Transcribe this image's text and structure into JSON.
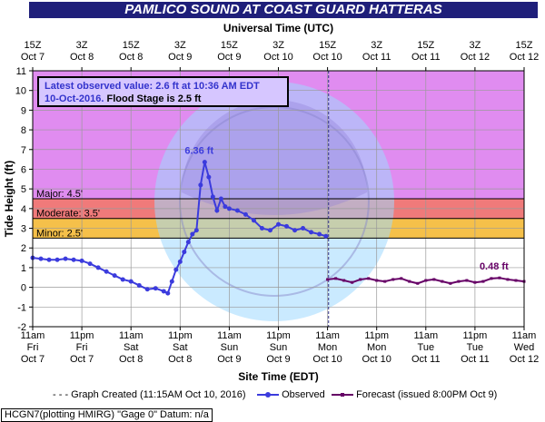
{
  "header": {
    "title": "PAMLICO SOUND AT COAST GUARD HATTERAS",
    "top_axis_title": "Universal Time (UTC)"
  },
  "info_box": {
    "line1": "Latest observed value: 2.6 ft at 10:36 AM EDT",
    "line2_date": "10-Oct-2016.",
    "line2_flood": " Flood Stage is 2.5 ft"
  },
  "legend": {
    "graph_created": "Graph Created (11:15AM Oct 10, 2016)",
    "observed": "Observed",
    "forecast": "Forecast (issued 8:00PM Oct 9)"
  },
  "footer": {
    "text": "HCGN7(plotting HMIRG) \"Gage 0\" Datum: n/a"
  },
  "colors": {
    "title_bg": "#1f1f7a",
    "major_band": "#e08cf0",
    "moderate_band": "#f07a7a",
    "minor_band": "#f5c04a",
    "normal_band": "#ffffff",
    "observed": "#3b3bdd",
    "forecast": "#660066",
    "info_text": "#3333cc"
  },
  "chart_data": {
    "type": "line",
    "ylabel": "Tide Height (ft)",
    "xlabel": "Site Time (EDT)",
    "ylim": [
      -2,
      11
    ],
    "yticks": [
      -2,
      -1,
      0,
      1,
      2,
      3,
      4,
      5,
      6,
      7,
      8,
      9,
      10,
      11
    ],
    "grid": true,
    "x_bottom_ticks": [
      {
        "time": "11am",
        "day": "Fri",
        "date": "Oct 7"
      },
      {
        "time": "11pm",
        "day": "Fri",
        "date": "Oct 7"
      },
      {
        "time": "11am",
        "day": "Sat",
        "date": "Oct 8"
      },
      {
        "time": "11pm",
        "day": "Sat",
        "date": "Oct 8"
      },
      {
        "time": "11am",
        "day": "Sun",
        "date": "Oct 9"
      },
      {
        "time": "11pm",
        "day": "Sun",
        "date": "Oct 9"
      },
      {
        "time": "11am",
        "day": "Mon",
        "date": "Oct 10"
      },
      {
        "time": "11pm",
        "day": "Mon",
        "date": "Oct 10"
      },
      {
        "time": "11am",
        "day": "Tue",
        "date": "Oct 11"
      },
      {
        "time": "11pm",
        "day": "Tue",
        "date": "Oct 11"
      },
      {
        "time": "11am",
        "day": "Wed",
        "date": "Oct 12"
      }
    ],
    "x_top_ticks": [
      {
        "time": "15Z",
        "date": "Oct 7"
      },
      {
        "time": "3Z",
        "date": "Oct 8"
      },
      {
        "time": "15Z",
        "date": "Oct 8"
      },
      {
        "time": "3Z",
        "date": "Oct 9"
      },
      {
        "time": "15Z",
        "date": "Oct 9"
      },
      {
        "time": "3Z",
        "date": "Oct 10"
      },
      {
        "time": "15Z",
        "date": "Oct 10"
      },
      {
        "time": "3Z",
        "date": "Oct 11"
      },
      {
        "time": "15Z",
        "date": "Oct 11"
      },
      {
        "time": "3Z",
        "date": "Oct 12"
      },
      {
        "time": "15Z",
        "date": "Oct 12"
      }
    ],
    "flood_categories": [
      {
        "name": "Major",
        "label": "Major: 4.5'",
        "value": 4.5
      },
      {
        "name": "Moderate",
        "label": "Moderate: 3.5'",
        "value": 3.5
      },
      {
        "name": "Minor",
        "label": "Minor: 2.5'",
        "value": 2.5
      }
    ],
    "graph_created_hours": 72.25,
    "series": [
      {
        "name": "Observed",
        "hours_since_oct7_11am": [
          0,
          2,
          4,
          6,
          8,
          10,
          12,
          14,
          16,
          18,
          20,
          22,
          24,
          26,
          28,
          30,
          32,
          33,
          34,
          35,
          36,
          37,
          38,
          39,
          40,
          41,
          42,
          43,
          44,
          45,
          46,
          47,
          48,
          50,
          52,
          54,
          56,
          58,
          60,
          62,
          64,
          66,
          68,
          70,
          71.6
        ],
        "values": [
          1.5,
          1.45,
          1.4,
          1.4,
          1.45,
          1.4,
          1.35,
          1.2,
          1.0,
          0.8,
          0.6,
          0.4,
          0.3,
          0.1,
          -0.1,
          -0.05,
          -0.2,
          -0.3,
          0.3,
          0.9,
          1.3,
          1.8,
          2.3,
          2.7,
          2.9,
          5.2,
          6.36,
          5.6,
          4.6,
          3.9,
          4.5,
          4.1,
          4.0,
          3.9,
          3.7,
          3.4,
          3.0,
          2.9,
          3.2,
          3.1,
          2.9,
          3.0,
          2.8,
          2.7,
          2.6
        ]
      },
      {
        "name": "Forecast (issued 8:00PM Oct 9)",
        "hours_since_oct7_11am": [
          72,
          74,
          76,
          78,
          80,
          82,
          84,
          86,
          88,
          90,
          92,
          94,
          96,
          98,
          100,
          102,
          104,
          106,
          108,
          110,
          112,
          114,
          116,
          118,
          120
        ],
        "values": [
          0.4,
          0.45,
          0.35,
          0.25,
          0.4,
          0.45,
          0.35,
          0.3,
          0.4,
          0.45,
          0.3,
          0.2,
          0.35,
          0.4,
          0.3,
          0.2,
          0.3,
          0.35,
          0.25,
          0.3,
          0.45,
          0.48,
          0.4,
          0.35,
          0.3
        ]
      }
    ],
    "annotations": [
      {
        "label": "6.36 ft",
        "hours": 42,
        "value": 6.36,
        "series": "Observed"
      },
      {
        "label": "0.48 ft",
        "hours": 114,
        "value": 0.48,
        "series": "Forecast"
      }
    ]
  }
}
